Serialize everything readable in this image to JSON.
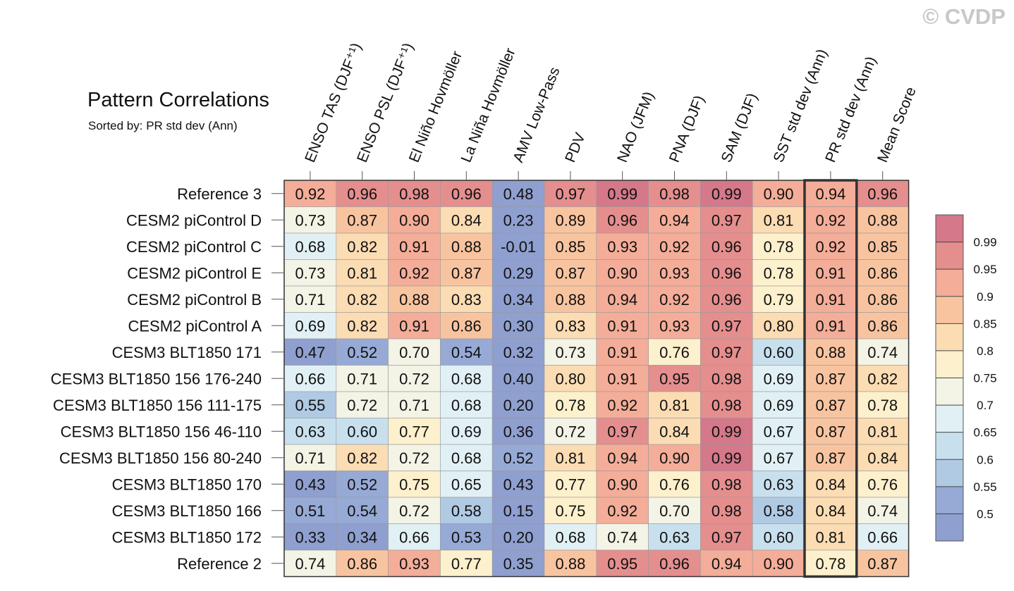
{
  "watermark": "© CVDP",
  "chart_data": {
    "type": "heatmap",
    "title": "Pattern Correlations",
    "subtitle": "Sorted by: PR std dev (Ann)",
    "columns": [
      "ENSO TAS (DJF⁺¹)",
      "ENSO PSL (DJF⁺¹)",
      "El Niño Hovmöller",
      "La Niña Hovmöller",
      "AMV Low-Pass",
      "PDV",
      "NAO (JFM)",
      "PNA (DJF)",
      "SAM (DJF)",
      "SST std dev (Ann)",
      "PR std dev (Ann)",
      "Mean Score"
    ],
    "highlight_column": "PR std dev (Ann)",
    "rows": [
      {
        "name": "Reference 3",
        "values": [
          "0.92",
          "0.96",
          "0.98",
          "0.96",
          "0.48",
          "0.97",
          "0.99",
          "0.98",
          "0.99",
          "0.90",
          "0.94",
          "0.96"
        ]
      },
      {
        "name": "CESM2 piControl D",
        "values": [
          "0.73",
          "0.87",
          "0.90",
          "0.84",
          "0.23",
          "0.89",
          "0.96",
          "0.94",
          "0.97",
          "0.81",
          "0.92",
          "0.88"
        ]
      },
      {
        "name": "CESM2 piControl C",
        "values": [
          "0.68",
          "0.82",
          "0.91",
          "0.88",
          "-0.01",
          "0.85",
          "0.93",
          "0.92",
          "0.96",
          "0.78",
          "0.92",
          "0.85"
        ]
      },
      {
        "name": "CESM2 piControl E",
        "values": [
          "0.73",
          "0.81",
          "0.92",
          "0.87",
          "0.29",
          "0.87",
          "0.90",
          "0.93",
          "0.96",
          "0.78",
          "0.91",
          "0.86"
        ]
      },
      {
        "name": "CESM2 piControl B",
        "values": [
          "0.71",
          "0.82",
          "0.88",
          "0.83",
          "0.34",
          "0.88",
          "0.94",
          "0.92",
          "0.96",
          "0.79",
          "0.91",
          "0.86"
        ]
      },
      {
        "name": "CESM2 piControl A",
        "values": [
          "0.69",
          "0.82",
          "0.91",
          "0.86",
          "0.30",
          "0.83",
          "0.91",
          "0.93",
          "0.97",
          "0.80",
          "0.91",
          "0.86"
        ]
      },
      {
        "name": "CESM3 BLT1850 171",
        "values": [
          "0.47",
          "0.52",
          "0.70",
          "0.54",
          "0.32",
          "0.73",
          "0.91",
          "0.76",
          "0.97",
          "0.60",
          "0.88",
          "0.74"
        ]
      },
      {
        "name": "CESM3 BLT1850 156 176-240",
        "values": [
          "0.66",
          "0.71",
          "0.72",
          "0.68",
          "0.40",
          "0.80",
          "0.91",
          "0.95",
          "0.98",
          "0.69",
          "0.87",
          "0.82"
        ]
      },
      {
        "name": "CESM3 BLT1850 156 111-175",
        "values": [
          "0.55",
          "0.72",
          "0.71",
          "0.68",
          "0.20",
          "0.78",
          "0.92",
          "0.81",
          "0.98",
          "0.69",
          "0.87",
          "0.78"
        ]
      },
      {
        "name": "CESM3 BLT1850 156 46-110",
        "values": [
          "0.63",
          "0.60",
          "0.77",
          "0.69",
          "0.36",
          "0.72",
          "0.97",
          "0.84",
          "0.99",
          "0.67",
          "0.87",
          "0.81"
        ]
      },
      {
        "name": "CESM3 BLT1850 156 80-240",
        "values": [
          "0.71",
          "0.82",
          "0.72",
          "0.68",
          "0.52",
          "0.81",
          "0.94",
          "0.90",
          "0.99",
          "0.67",
          "0.87",
          "0.84"
        ]
      },
      {
        "name": "CESM3 BLT1850 170",
        "values": [
          "0.43",
          "0.52",
          "0.75",
          "0.65",
          "0.43",
          "0.77",
          "0.90",
          "0.76",
          "0.98",
          "0.63",
          "0.84",
          "0.76"
        ]
      },
      {
        "name": "CESM3 BLT1850 166",
        "values": [
          "0.51",
          "0.54",
          "0.72",
          "0.58",
          "0.15",
          "0.75",
          "0.92",
          "0.70",
          "0.98",
          "0.58",
          "0.84",
          "0.74"
        ]
      },
      {
        "name": "CESM3 BLT1850 172",
        "values": [
          "0.33",
          "0.34",
          "0.66",
          "0.53",
          "0.20",
          "0.68",
          "0.74",
          "0.63",
          "0.97",
          "0.60",
          "0.81",
          "0.66"
        ]
      },
      {
        "name": "Reference 2",
        "values": [
          "0.74",
          "0.86",
          "0.93",
          "0.77",
          "0.35",
          "0.88",
          "0.95",
          "0.96",
          "0.94",
          "0.90",
          "0.78",
          "0.87"
        ]
      }
    ],
    "colorbar": {
      "levels": [
        "0.99",
        "0.95",
        "0.9",
        "0.85",
        "0.8",
        "0.75",
        "0.7",
        "0.65",
        "0.6",
        "0.55",
        "0.5"
      ],
      "colors": [
        "#d4788a",
        "#e58e8e",
        "#f4ad98",
        "#f8c4a0",
        "#fbdcb3",
        "#fdf0cc",
        "#f3f3e6",
        "#e1f0f4",
        "#c8e0ee",
        "#b0cae4",
        "#97aad6",
        "#8f9fcf"
      ]
    }
  }
}
